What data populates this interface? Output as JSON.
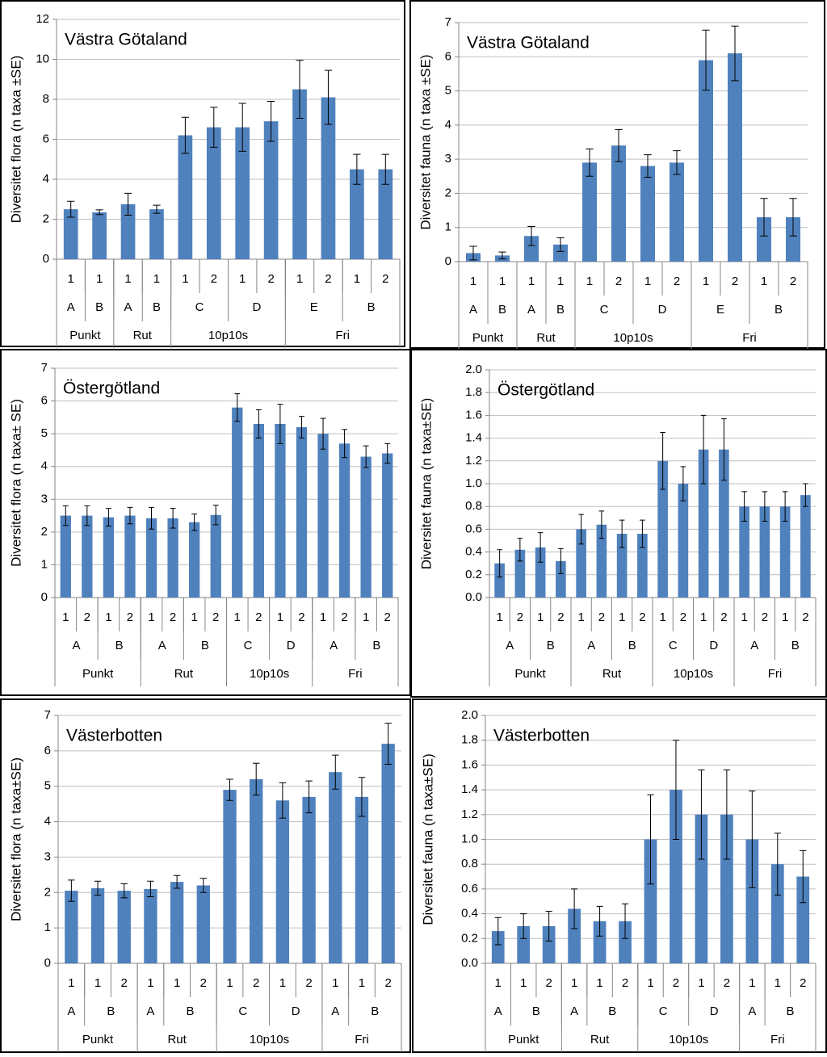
{
  "chart_data": [
    {
      "type": "bar",
      "title": "Västra Götaland",
      "y_label": "Diversitet flora (n taxa ±SE)",
      "color": "#4f81bd",
      "grid": true,
      "ylim": [
        0,
        12
      ],
      "yticks": [
        0,
        2,
        4,
        6,
        8,
        10,
        12
      ],
      "groups": [
        {
          "label": "Punkt",
          "subgroups": [
            {
              "label": "A",
              "categories": [
                "1"
              ]
            },
            {
              "label": "B",
              "categories": [
                "1"
              ]
            }
          ]
        },
        {
          "label": "Rut",
          "subgroups": [
            {
              "label": "A",
              "categories": [
                "1"
              ]
            },
            {
              "label": "B",
              "categories": [
                "1"
              ]
            }
          ]
        },
        {
          "label": "10p10s",
          "subgroups": [
            {
              "label": "C",
              "categories": [
                "1",
                "2"
              ]
            },
            {
              "label": "D",
              "categories": [
                "1",
                "2"
              ]
            }
          ]
        },
        {
          "label": "Fri",
          "subgroups": [
            {
              "label": "E",
              "categories": [
                "1",
                "2"
              ]
            },
            {
              "label": "B",
              "categories": [
                "1",
                "2"
              ]
            }
          ]
        }
      ],
      "values": [
        2.5,
        2.35,
        2.75,
        2.5,
        6.2,
        6.6,
        6.6,
        6.9,
        8.5,
        8.1,
        4.5,
        4.5
      ],
      "errors": [
        0.4,
        0.12,
        0.55,
        0.2,
        0.9,
        1.0,
        1.2,
        1.0,
        1.45,
        1.35,
        0.75,
        0.75
      ]
    },
    {
      "type": "bar",
      "title": "Västra Götaland",
      "y_label": "Diversitet fauna (n taxa ±SE)",
      "color": "#4f81bd",
      "grid": true,
      "ylim": [
        0,
        7
      ],
      "yticks": [
        0,
        1,
        2,
        3,
        4,
        5,
        6,
        7
      ],
      "groups": [
        {
          "label": "Punkt",
          "subgroups": [
            {
              "label": "A",
              "categories": [
                "1"
              ]
            },
            {
              "label": "B",
              "categories": [
                "1"
              ]
            }
          ]
        },
        {
          "label": "Rut",
          "subgroups": [
            {
              "label": "A",
              "categories": [
                "1"
              ]
            },
            {
              "label": "B",
              "categories": [
                "1"
              ]
            }
          ]
        },
        {
          "label": "10p10s",
          "subgroups": [
            {
              "label": "C",
              "categories": [
                "1",
                "2"
              ]
            },
            {
              "label": "D",
              "categories": [
                "1",
                "2"
              ]
            }
          ]
        },
        {
          "label": "Fri",
          "subgroups": [
            {
              "label": "E",
              "categories": [
                "1",
                "2"
              ]
            },
            {
              "label": "B",
              "categories": [
                "1",
                "2"
              ]
            }
          ]
        }
      ],
      "values": [
        0.25,
        0.18,
        0.75,
        0.5,
        2.9,
        3.4,
        2.8,
        2.9,
        5.9,
        6.1,
        1.3,
        1.3
      ],
      "errors": [
        0.2,
        0.1,
        0.28,
        0.2,
        0.4,
        0.47,
        0.33,
        0.35,
        0.88,
        0.8,
        0.55,
        0.55
      ]
    },
    {
      "type": "bar",
      "title": "Östergötland",
      "y_label": "Diversitet flora (n taxa± SE)",
      "color": "#4f81bd",
      "grid": true,
      "ylim": [
        0,
        7
      ],
      "yticks": [
        0,
        1,
        2,
        3,
        4,
        5,
        6,
        7
      ],
      "groups": [
        {
          "label": "Punkt",
          "subgroups": [
            {
              "label": "A",
              "categories": [
                "1",
                "2"
              ]
            },
            {
              "label": "B",
              "categories": [
                "1",
                "2"
              ]
            }
          ]
        },
        {
          "label": "Rut",
          "subgroups": [
            {
              "label": "A",
              "categories": [
                "1",
                "2"
              ]
            },
            {
              "label": "B",
              "categories": [
                "1",
                "2"
              ]
            }
          ]
        },
        {
          "label": "10p10s",
          "subgroups": [
            {
              "label": "C",
              "categories": [
                "1",
                "2"
              ]
            },
            {
              "label": "D",
              "categories": [
                "1",
                "2"
              ]
            }
          ]
        },
        {
          "label": "Fri",
          "subgroups": [
            {
              "label": "A",
              "categories": [
                "1",
                "2"
              ]
            },
            {
              "label": "B",
              "categories": [
                "1",
                "2"
              ]
            }
          ]
        }
      ],
      "values": [
        2.5,
        2.5,
        2.45,
        2.5,
        2.42,
        2.42,
        2.3,
        2.52,
        5.8,
        5.3,
        5.3,
        5.2,
        5.0,
        4.7,
        4.3,
        4.4
      ],
      "errors": [
        0.3,
        0.3,
        0.27,
        0.25,
        0.33,
        0.3,
        0.25,
        0.3,
        0.42,
        0.43,
        0.6,
        0.33,
        0.47,
        0.43,
        0.33,
        0.3
      ]
    },
    {
      "type": "bar",
      "title": "Östergötland",
      "y_label": "Diversitet fauna (n taxa±SE)",
      "color": "#4f81bd",
      "grid": true,
      "ylim": [
        0,
        2
      ],
      "yticks": [
        {
          "value": 0,
          "label": "0.0"
        },
        0.2,
        0.4,
        0.6,
        0.8,
        {
          "value": 1,
          "label": "1.0"
        },
        1.2,
        1.4,
        1.6,
        1.8,
        {
          "value": 2,
          "label": "2.0"
        }
      ],
      "groups": [
        {
          "label": "Punkt",
          "subgroups": [
            {
              "label": "A",
              "categories": [
                "1",
                "2"
              ]
            },
            {
              "label": "B",
              "categories": [
                "1",
                "2"
              ]
            }
          ]
        },
        {
          "label": "Rut",
          "subgroups": [
            {
              "label": "A",
              "categories": [
                "1",
                "2"
              ]
            },
            {
              "label": "B",
              "categories": [
                "1",
                "2"
              ]
            }
          ]
        },
        {
          "label": "10p10s",
          "subgroups": [
            {
              "label": "C",
              "categories": [
                "1",
                "2"
              ]
            },
            {
              "label": "D",
              "categories": [
                "1",
                "2"
              ]
            }
          ]
        },
        {
          "label": "Fri",
          "subgroups": [
            {
              "label": "A",
              "categories": [
                "1",
                "2"
              ]
            },
            {
              "label": "B",
              "categories": [
                "1",
                "2"
              ]
            }
          ]
        }
      ],
      "values": [
        0.3,
        0.42,
        0.44,
        0.32,
        0.6,
        0.64,
        0.56,
        0.56,
        1.2,
        1.0,
        1.3,
        1.3,
        0.8,
        0.8,
        0.8,
        0.9
      ],
      "errors": [
        0.12,
        0.1,
        0.13,
        0.11,
        0.13,
        0.12,
        0.12,
        0.12,
        0.25,
        0.15,
        0.3,
        0.27,
        0.13,
        0.13,
        0.13,
        0.1
      ]
    },
    {
      "type": "bar",
      "title": "Västerbotten",
      "y_label": "Diversitet flora (n taxa±SE)",
      "color": "#4f81bd",
      "grid": true,
      "ylim": [
        0,
        7
      ],
      "yticks": [
        0,
        1,
        2,
        3,
        4,
        5,
        6,
        7
      ],
      "groups": [
        {
          "label": "Punkt",
          "subgroups": [
            {
              "label": "A",
              "categories": [
                "1"
              ]
            },
            {
              "label": "B",
              "categories": [
                "1",
                "2"
              ]
            }
          ]
        },
        {
          "label": "Rut",
          "subgroups": [
            {
              "label": "A",
              "categories": [
                "1"
              ]
            },
            {
              "label": "B",
              "categories": [
                "1",
                "2"
              ]
            }
          ]
        },
        {
          "label": "10p10s",
          "subgroups": [
            {
              "label": "C",
              "categories": [
                "1",
                "2"
              ]
            },
            {
              "label": "D",
              "categories": [
                "1",
                "2"
              ]
            }
          ]
        },
        {
          "label": "Fri",
          "subgroups": [
            {
              "label": "A",
              "categories": [
                "1"
              ]
            },
            {
              "label": "B",
              "categories": [
                "1",
                "2"
              ]
            }
          ]
        }
      ],
      "values": [
        2.05,
        2.12,
        2.05,
        2.1,
        2.3,
        2.2,
        4.9,
        5.2,
        4.6,
        4.7,
        5.4,
        4.7,
        6.2
      ],
      "errors": [
        0.3,
        0.2,
        0.2,
        0.22,
        0.18,
        0.2,
        0.3,
        0.45,
        0.5,
        0.45,
        0.48,
        0.55,
        0.58
      ]
    },
    {
      "type": "bar",
      "title": "Västerbotten",
      "y_label": "Diversitet fauna (n taxa±SE)",
      "color": "#4f81bd",
      "grid": true,
      "ylim": [
        0,
        2
      ],
      "yticks": [
        {
          "value": 0,
          "label": "0.0"
        },
        0.2,
        0.4,
        0.6,
        0.8,
        {
          "value": 1,
          "label": "1.0"
        },
        1.2,
        1.4,
        1.6,
        1.8,
        {
          "value": 2,
          "label": "2.0"
        }
      ],
      "groups": [
        {
          "label": "Punkt",
          "subgroups": [
            {
              "label": "A",
              "categories": [
                "1"
              ]
            },
            {
              "label": "B",
              "categories": [
                "1",
                "2"
              ]
            }
          ]
        },
        {
          "label": "Rut",
          "subgroups": [
            {
              "label": "A",
              "categories": [
                "1"
              ]
            },
            {
              "label": "B",
              "categories": [
                "1",
                "2"
              ]
            }
          ]
        },
        {
          "label": "10p10s",
          "subgroups": [
            {
              "label": "C",
              "categories": [
                "1",
                "2"
              ]
            },
            {
              "label": "D",
              "categories": [
                "1",
                "2"
              ]
            }
          ]
        },
        {
          "label": "Fri",
          "subgroups": [
            {
              "label": "A",
              "categories": [
                "1"
              ]
            },
            {
              "label": "B",
              "categories": [
                "1",
                "2"
              ]
            }
          ]
        }
      ],
      "values": [
        0.26,
        0.3,
        0.3,
        0.44,
        0.34,
        0.34,
        1.0,
        1.4,
        1.2,
        1.2,
        1.0,
        0.8,
        0.7
      ],
      "errors": [
        0.11,
        0.1,
        0.12,
        0.16,
        0.12,
        0.14,
        0.36,
        0.4,
        0.36,
        0.36,
        0.39,
        0.25,
        0.21
      ]
    }
  ]
}
